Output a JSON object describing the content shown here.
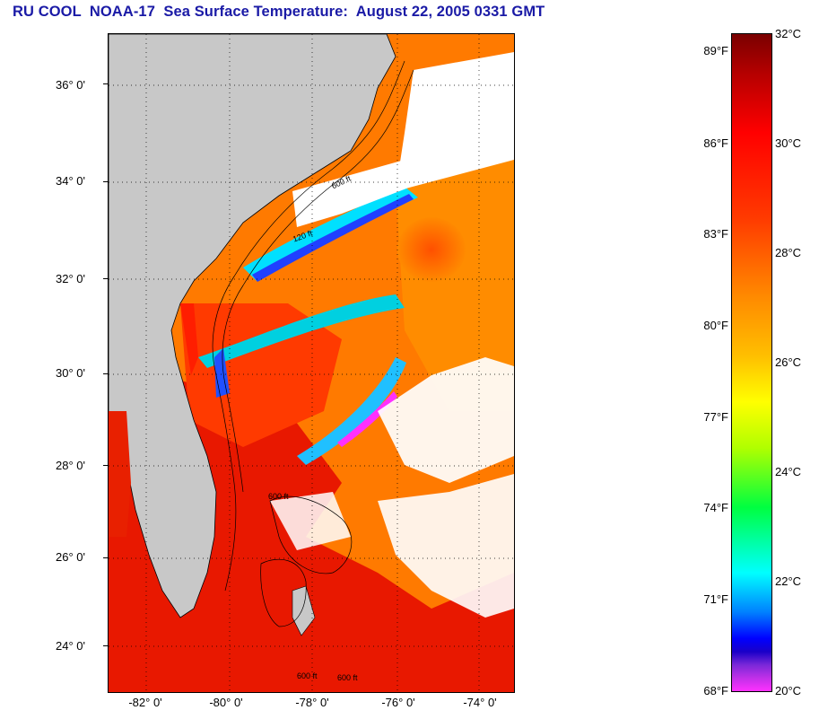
{
  "header": {
    "title": "RU COOL  NOAA-17  Sea Surface Temperature:  August 22, 2005 0331 GMT"
  },
  "map": {
    "latitude_labels": [
      "36° 0'",
      "34° 0'",
      "32° 0'",
      "30° 0'",
      "28° 0'",
      "26° 0'",
      "24° 0'"
    ],
    "longitude_labels": [
      "-82° 0'",
      "-80° 0'",
      "-78° 0'",
      "-76° 0'",
      "-74° 0'"
    ],
    "colors": {
      "land": "#c8c8c8",
      "cloud": "#ffffff",
      "warm_ocean": "#ff6a00",
      "hot_ocean": "#e01000"
    },
    "contour_labels": [
      "120 ft",
      "600 ft",
      "120 ft",
      "600 ft",
      "600 ft",
      "120 ft",
      "600 ft",
      "600 ft"
    ]
  },
  "colorbar": {
    "fahrenheit_labels": [
      "89°F",
      "86°F",
      "83°F",
      "80°F",
      "77°F",
      "74°F",
      "71°F",
      "68°F"
    ],
    "celsius_labels": [
      "32°C",
      "30°C",
      "28°C",
      "26°C",
      "24°C",
      "22°C",
      "20°C"
    ]
  }
}
